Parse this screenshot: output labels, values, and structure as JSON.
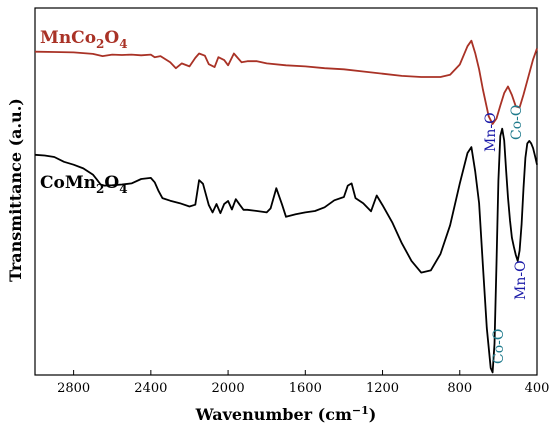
{
  "chart_data": {
    "type": "line",
    "title": "",
    "xlabel": "Wavenumber (cm⁻¹)",
    "ylabel": "Transmittance (a.u.)",
    "xlim": [
      3000,
      400
    ],
    "ylim": [
      0,
      100
    ],
    "xreversed": true,
    "yticks_shown": false,
    "grid": false,
    "xticks": [
      2800,
      2400,
      2000,
      1600,
      1200,
      800,
      400
    ],
    "series": [
      {
        "name": "MnCo2O4",
        "label_base": "MnCo",
        "label_sub1": "2",
        "label_mid": "O",
        "label_sub2": "4",
        "color": "#a93226",
        "x": [
          3000,
          2900,
          2800,
          2700,
          2650,
          2600,
          2550,
          2500,
          2450,
          2400,
          2380,
          2350,
          2300,
          2270,
          2240,
          2200,
          2170,
          2150,
          2120,
          2100,
          2070,
          2050,
          2020,
          2000,
          1970,
          1950,
          1930,
          1900,
          1850,
          1800,
          1700,
          1600,
          1500,
          1400,
          1300,
          1200,
          1100,
          1000,
          900,
          850,
          800,
          760,
          740,
          720,
          700,
          680,
          650,
          630,
          610,
          590,
          570,
          550,
          530,
          510,
          490,
          470,
          450,
          420,
          400
        ],
        "y": [
          88.1,
          88.0,
          87.9,
          87.5,
          86.9,
          87.3,
          87.2,
          87.3,
          87.1,
          87.3,
          86.6,
          86.9,
          85.2,
          83.6,
          84.9,
          84.1,
          86.4,
          87.6,
          87.0,
          84.7,
          83.9,
          86.6,
          85.8,
          84.4,
          87.6,
          86.4,
          85.2,
          85.5,
          85.5,
          84.9,
          84.4,
          84.1,
          83.6,
          83.3,
          82.7,
          82.1,
          81.5,
          81.2,
          81.2,
          81.8,
          84.6,
          89.6,
          91.1,
          87.7,
          83.3,
          77.8,
          70.5,
          68.4,
          69.9,
          73.4,
          76.8,
          78.6,
          76.3,
          73.2,
          72.9,
          76.4,
          80.2,
          86.0,
          89.0
        ]
      },
      {
        "name": "CoMn2O4",
        "label_base": "CoMn",
        "label_sub1": "2",
        "label_mid": "O",
        "label_sub2": "4",
        "color": "#000000",
        "x": [
          3000,
          2950,
          2900,
          2850,
          2800,
          2750,
          2700,
          2680,
          2660,
          2640,
          2600,
          2550,
          2500,
          2450,
          2400,
          2380,
          2360,
          2340,
          2300,
          2250,
          2200,
          2170,
          2150,
          2130,
          2100,
          2080,
          2060,
          2040,
          2020,
          2000,
          1980,
          1960,
          1940,
          1920,
          1900,
          1850,
          1800,
          1780,
          1750,
          1720,
          1700,
          1650,
          1600,
          1550,
          1500,
          1450,
          1400,
          1380,
          1360,
          1340,
          1300,
          1260,
          1230,
          1200,
          1150,
          1100,
          1050,
          1000,
          950,
          900,
          850,
          800,
          760,
          740,
          720,
          700,
          680,
          660,
          640,
          630,
          620,
          610,
          600,
          590,
          580,
          570,
          560,
          550,
          540,
          530,
          520,
          510,
          500,
          490,
          480,
          470,
          460,
          450,
          440,
          430,
          420,
          410,
          400
        ],
        "y": [
          60.0,
          59.8,
          59.4,
          58.1,
          57.3,
          56.3,
          54.6,
          53.3,
          51.9,
          51.6,
          51.7,
          51.9,
          52.2,
          53.4,
          53.7,
          52.5,
          50.1,
          48.2,
          47.5,
          46.8,
          45.9,
          46.4,
          53.1,
          52.1,
          46.3,
          44.3,
          46.6,
          44.1,
          46.6,
          47.4,
          45.1,
          47.9,
          46.4,
          45.0,
          45.0,
          44.7,
          44.3,
          45.4,
          50.9,
          46.4,
          43.1,
          43.8,
          44.3,
          44.7,
          45.7,
          47.6,
          48.5,
          51.6,
          52.2,
          48.2,
          46.8,
          44.6,
          48.9,
          46.3,
          41.6,
          35.9,
          31.1,
          27.9,
          28.5,
          33.0,
          40.8,
          52.2,
          60.5,
          62.1,
          55.5,
          46.8,
          29.8,
          12.8,
          1.9,
          0.7,
          8.5,
          30.4,
          53.0,
          65.1,
          67.1,
          63.9,
          55.8,
          48.3,
          42.1,
          37.4,
          35.0,
          32.7,
          31.1,
          33.9,
          41.1,
          50.9,
          59.2,
          63.1,
          63.8,
          63.1,
          61.8,
          59.6,
          57.3
        ]
      }
    ],
    "annotations": [
      {
        "text": "Mn-O",
        "color": "#1a1aa8",
        "x": 640,
        "y": 73,
        "vertical": true
      },
      {
        "text": "Co-O",
        "color": "#1f7a8c",
        "x": 520,
        "y": 71,
        "vertical": true
      },
      {
        "text": "Mn-O",
        "color": "#1a1aa8",
        "x": 510,
        "y": 22,
        "vertical": true
      },
      {
        "text": "Co-O",
        "color": "#1f7a8c",
        "x": 635,
        "y": -10,
        "vertical": true
      }
    ]
  }
}
